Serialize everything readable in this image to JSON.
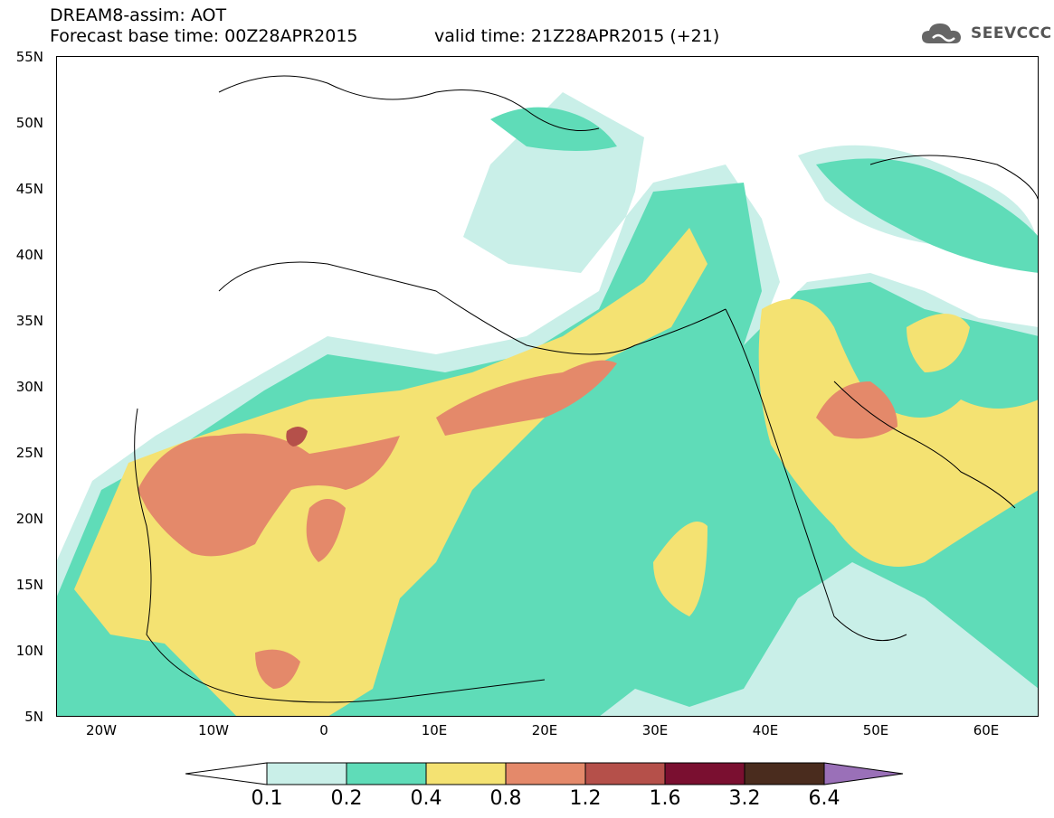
{
  "header": {
    "title_line1": "DREAM8-assim: AOT",
    "title_line2": "Forecast base time: 00Z28APR2015",
    "valid_time": "valid time: 21Z28APR2015 (+21)",
    "logo_text": "SEEVCCC"
  },
  "map": {
    "lat_labels": [
      "55N",
      "50N",
      "45N",
      "40N",
      "35N",
      "30N",
      "25N",
      "20N",
      "15N",
      "10N",
      "5N"
    ],
    "lon_labels": [
      "20W",
      "10W",
      "0",
      "10E",
      "20E",
      "30E",
      "40E",
      "50E",
      "60E"
    ],
    "lat_range": [
      5,
      55
    ],
    "lon_range": [
      -25,
      65
    ]
  },
  "colorbar": {
    "thresholds": [
      "0.1",
      "0.2",
      "0.4",
      "0.8",
      "1.2",
      "1.6",
      "3.2",
      "6.4"
    ],
    "colors": {
      "c01": "#c9efe8",
      "c02": "#5fdcb8",
      "c04": "#f4e272",
      "c08": "#e4896a",
      "c12": "#b5504a",
      "c16": "#7a0f30",
      "c32": "#4a2c1e",
      "c64": "#9a70b8"
    }
  }
}
